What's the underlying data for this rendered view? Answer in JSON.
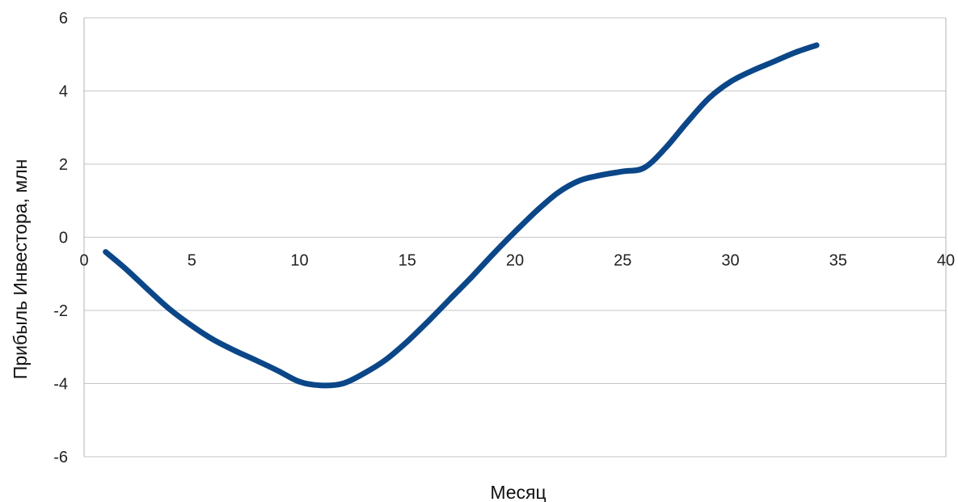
{
  "chart_data": {
    "type": "line",
    "title": "",
    "xlabel": "Месяц",
    "ylabel": "Прибыль Инвестора, млн",
    "xlim": [
      0,
      40
    ],
    "ylim": [
      -6,
      6
    ],
    "xticks": [
      0,
      5,
      10,
      15,
      20,
      25,
      30,
      35,
      40
    ],
    "yticks": [
      -6,
      -4,
      -2,
      0,
      2,
      4,
      6
    ],
    "grid": {
      "horizontal": true,
      "vertical": false
    },
    "legend": "none",
    "series": [
      {
        "color": "#0b4788",
        "points": [
          [
            1,
            -0.4
          ],
          [
            2,
            -0.9
          ],
          [
            3,
            -1.45
          ],
          [
            4,
            -1.98
          ],
          [
            5,
            -2.42
          ],
          [
            6,
            -2.8
          ],
          [
            7,
            -3.1
          ],
          [
            8,
            -3.37
          ],
          [
            9,
            -3.65
          ],
          [
            10,
            -3.95
          ],
          [
            11,
            -4.05
          ],
          [
            12,
            -4.0
          ],
          [
            13,
            -3.72
          ],
          [
            14,
            -3.35
          ],
          [
            15,
            -2.85
          ],
          [
            16,
            -2.28
          ],
          [
            17,
            -1.68
          ],
          [
            18,
            -1.08
          ],
          [
            19,
            -0.45
          ],
          [
            20,
            0.15
          ],
          [
            21,
            0.72
          ],
          [
            22,
            1.22
          ],
          [
            23,
            1.55
          ],
          [
            24,
            1.7
          ],
          [
            25,
            1.8
          ],
          [
            26,
            1.9
          ],
          [
            27,
            2.45
          ],
          [
            28,
            3.15
          ],
          [
            29,
            3.8
          ],
          [
            30,
            4.25
          ],
          [
            31,
            4.55
          ],
          [
            32,
            4.8
          ],
          [
            33,
            5.05
          ],
          [
            34,
            5.25
          ]
        ]
      }
    ],
    "colors": {
      "line": "#0b4788",
      "grid": "#c6c6c6",
      "frame": "#b3b3b3",
      "tick_text": "#222222"
    }
  }
}
